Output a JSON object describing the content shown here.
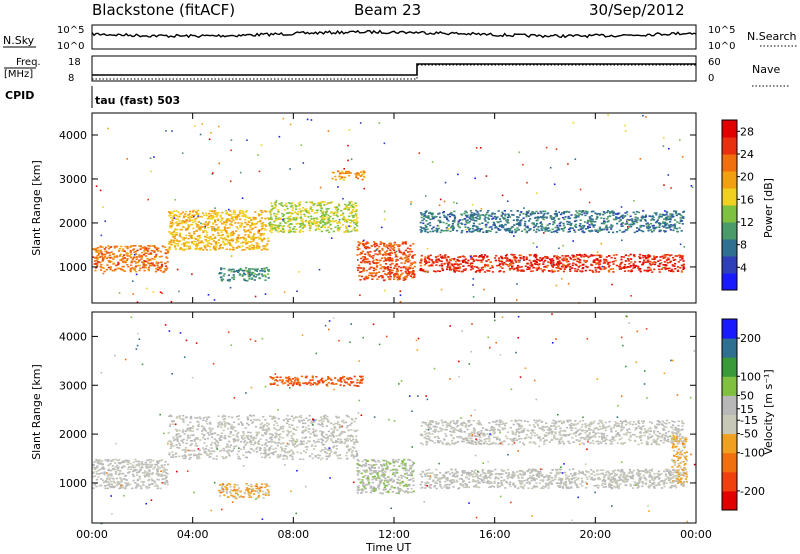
{
  "header": {
    "station": "Blackstone (fitACF)",
    "beam": "Beam 23",
    "date": "30/Sep/2012"
  },
  "strip": {
    "nsky_label": "N.Sky",
    "nsearch_label": "N.Search",
    "freq_label_1": "Freq.",
    "freq_label_2": "[MHz]",
    "nave_label": "Nave",
    "cpid_label": "CPID",
    "cpid_value": "tau (fast) 503",
    "noise_ticks": [
      "10^5",
      "10^0"
    ],
    "freq_ticks": [
      "18",
      "8"
    ],
    "nave_ticks": [
      "60",
      "0"
    ]
  },
  "colors": {
    "power": [
      "#1a1aff",
      "#2f3fb8",
      "#2f6f8f",
      "#4a9a6a",
      "#7ec040",
      "#f0d020",
      "#f0a010",
      "#f07010",
      "#e83010",
      "#e00000"
    ],
    "velocity": [
      "#e00000",
      "#f04010",
      "#f07010",
      "#f0a020",
      "#c8c8b8",
      "#b8b8b8",
      "#80c040",
      "#3a9a3a",
      "#2f6f8f",
      "#1a1aff"
    ]
  },
  "chart_data": [
    {
      "type": "heatmap",
      "quantity": "power",
      "x": [
        "00:00",
        "04:00",
        "08:00",
        "12:00",
        "16:00",
        "20:00",
        "00:00"
      ],
      "xlim_hours": [
        0,
        24
      ],
      "ylabel": "Slant Range [km]",
      "yticks": [
        "1000",
        "2000",
        "3000",
        "4000"
      ],
      "ylim": [
        180,
        4500
      ],
      "colorbar_label": "Power [dB]",
      "colorbar_ticks": [
        "4",
        "8",
        "12",
        "16",
        "20",
        "24",
        "28"
      ],
      "colorbar_range": [
        0,
        30
      ],
      "bands": [
        {
          "t0": 0.0,
          "t1": 3.0,
          "r0": 900,
          "r1": 1500,
          "value": 22
        },
        {
          "t0": 3.0,
          "t1": 7.0,
          "r0": 1400,
          "r1": 2300,
          "value": 18
        },
        {
          "t0": 7.0,
          "t1": 10.5,
          "r0": 1800,
          "r1": 2500,
          "value": 15
        },
        {
          "t0": 10.5,
          "t1": 12.8,
          "r0": 700,
          "r1": 1600,
          "value": 24
        },
        {
          "t0": 13.0,
          "t1": 23.5,
          "r0": 900,
          "r1": 1300,
          "value": 26
        },
        {
          "t0": 13.0,
          "t1": 23.5,
          "r0": 1800,
          "r1": 2300,
          "value": 8
        },
        {
          "t0": 5.0,
          "t1": 7.0,
          "r0": 700,
          "r1": 1000,
          "value": 10
        },
        {
          "t0": 9.5,
          "t1": 10.8,
          "r0": 3000,
          "r1": 3200,
          "value": 20
        }
      ]
    },
    {
      "type": "heatmap",
      "quantity": "velocity",
      "x": [
        "00:00",
        "04:00",
        "08:00",
        "12:00",
        "16:00",
        "20:00",
        "00:00"
      ],
      "xlim_hours": [
        0,
        24
      ],
      "xlabel": "Time UT",
      "ylabel": "Slant Range [km]",
      "yticks": [
        "1000",
        "2000",
        "3000",
        "4000"
      ],
      "ylim": [
        180,
        4500
      ],
      "colorbar_label": "Velocity [m s⁻¹]",
      "colorbar_ticks": [
        "200",
        "100",
        "50",
        "15",
        "-15",
        "-50",
        "-100",
        "-200"
      ],
      "colorbar_range": [
        -250,
        250
      ],
      "bands": [
        {
          "t0": 0.0,
          "t1": 3.0,
          "r0": 900,
          "r1": 1500,
          "value": 0
        },
        {
          "t0": 3.0,
          "t1": 10.5,
          "r0": 1500,
          "r1": 2400,
          "value": 0
        },
        {
          "t0": 10.5,
          "t1": 12.8,
          "r0": 800,
          "r1": 1500,
          "value": 30
        },
        {
          "t0": 13.0,
          "t1": 23.5,
          "r0": 900,
          "r1": 1300,
          "value": 0
        },
        {
          "t0": 13.0,
          "t1": 23.5,
          "r0": 1800,
          "r1": 2300,
          "value": -5
        },
        {
          "t0": 5.0,
          "t1": 7.0,
          "r0": 700,
          "r1": 1000,
          "value": -60
        },
        {
          "t0": 7.0,
          "t1": 10.8,
          "r0": 3000,
          "r1": 3200,
          "value": -150
        },
        {
          "t0": 23.0,
          "t1": 23.6,
          "r0": 1000,
          "r1": 2000,
          "value": -60
        }
      ]
    }
  ]
}
